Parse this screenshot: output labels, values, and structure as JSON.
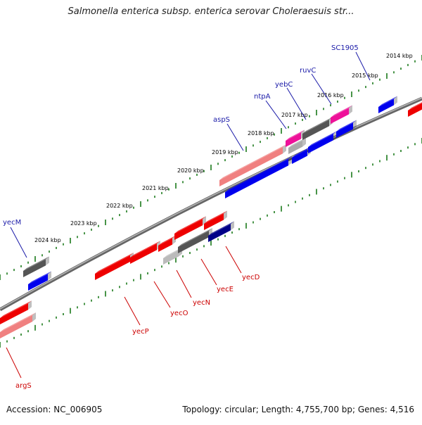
{
  "title": "Salmonella enterica subsp. enterica serovar Choleraesuis str...",
  "footer": {
    "accession": "Accession: NC_006905",
    "summary": "Topology: circular; Length: 4,755,700 bp; Genes: 4,516"
  },
  "colors": {
    "forward_gene": "#0000ee",
    "reverse_gene": "#ee0000",
    "tick": "#1a7a1a",
    "backbone": "#888888",
    "label_forward": "#1a1aa8",
    "label_reverse": "#cc0000"
  },
  "ruler_top": [
    {
      "label": "2024 kbp"
    },
    {
      "label": "2023 kbp"
    },
    {
      "label": "2022 kbp"
    },
    {
      "label": "2021 kbp"
    },
    {
      "label": "2020 kbp"
    },
    {
      "label": "2019 kbp"
    },
    {
      "label": "2018 kbp"
    },
    {
      "label": "2017 kbp"
    },
    {
      "label": "2016 kbp"
    },
    {
      "label": "2015 kbp"
    },
    {
      "label": "2014 kbp"
    }
  ],
  "gene_labels_top": [
    {
      "name": "yecM"
    },
    {
      "name": "aspS"
    },
    {
      "name": "ntpA"
    },
    {
      "name": "yebC"
    },
    {
      "name": "ruvC"
    },
    {
      "name": "SC1905"
    }
  ],
  "gene_labels_bottom": [
    {
      "name": "argS"
    },
    {
      "name": "yecP"
    },
    {
      "name": "yecO"
    },
    {
      "name": "yecN"
    },
    {
      "name": "yecE"
    },
    {
      "name": "yecD"
    }
  ]
}
